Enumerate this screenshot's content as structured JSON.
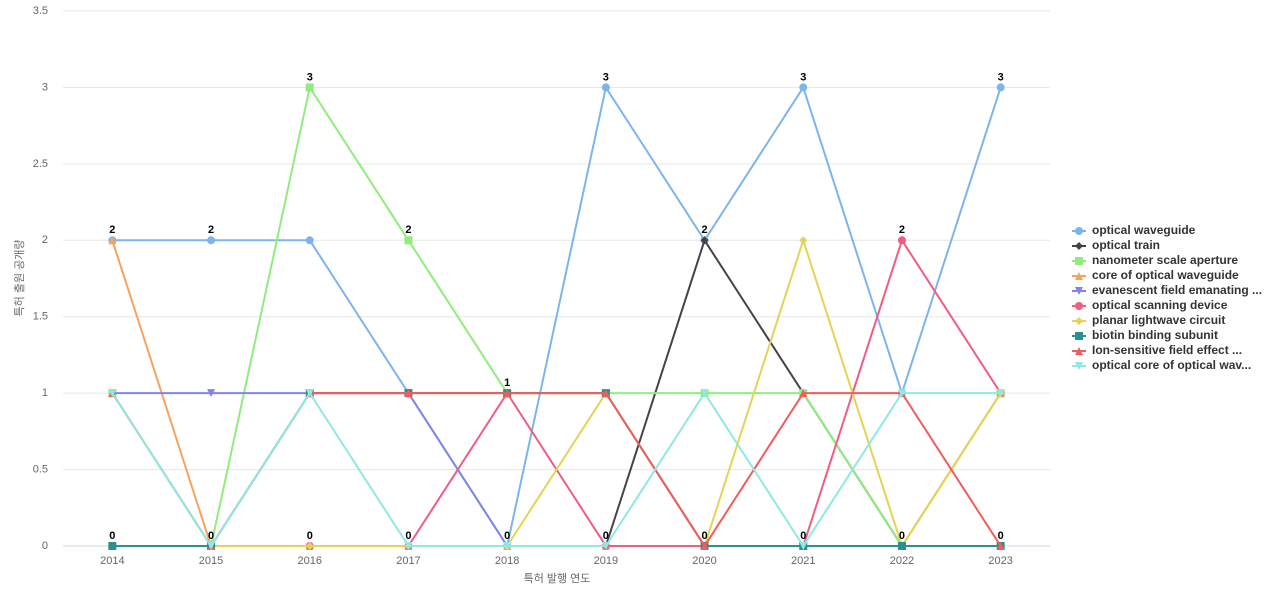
{
  "chart_data": {
    "type": "line",
    "x_label": "특허 발행 연도",
    "y_label": "특허 출원 공개량",
    "categories": [
      "2014",
      "2015",
      "2016",
      "2017",
      "2018",
      "2019",
      "2020",
      "2021",
      "2022",
      "2023"
    ],
    "ylim": [
      0,
      3.5
    ],
    "yticks": [
      0,
      0.5,
      1,
      1.5,
      2,
      2.5,
      3,
      3.5
    ],
    "grid": true,
    "legend": "right",
    "series": [
      {
        "name": "optical waveguide",
        "color": "#7cb5ec",
        "marker": "circle",
        "values": [
          2,
          2,
          2,
          1,
          0,
          3,
          2,
          3,
          1,
          3
        ]
      },
      {
        "name": "optical train",
        "color": "#434348",
        "marker": "diamond",
        "values": [
          0,
          0,
          0,
          0,
          0,
          0,
          2,
          1,
          0,
          0
        ]
      },
      {
        "name": "nanometer scale aperture",
        "color": "#90ed7d",
        "marker": "square",
        "values": [
          1,
          0,
          3,
          2,
          1,
          1,
          1,
          1,
          0,
          1
        ]
      },
      {
        "name": "core of optical waveguide",
        "color": "#f7a35c",
        "marker": "triangle",
        "values": [
          2,
          0,
          0,
          0,
          0,
          0,
          0,
          0,
          0,
          1
        ]
      },
      {
        "name": "evanescent field emanating ...",
        "color": "#8085e9",
        "marker": "triangle-down",
        "values": [
          1,
          1,
          1,
          1,
          0,
          0,
          0,
          0,
          0,
          0
        ]
      },
      {
        "name": "optical scanning device",
        "color": "#f15c80",
        "marker": "circle",
        "values": [
          0,
          0,
          0,
          0,
          1,
          0,
          0,
          0,
          2,
          1
        ]
      },
      {
        "name": "planar lightwave circuit",
        "color": "#e4d354",
        "marker": "diamond",
        "values": [
          0,
          0,
          0,
          0,
          0,
          1,
          0,
          2,
          0,
          1
        ]
      },
      {
        "name": "biotin binding subunit",
        "color": "#2b908f",
        "marker": "square",
        "values": [
          0,
          0,
          1,
          1,
          1,
          1,
          0,
          0,
          0,
          0
        ]
      },
      {
        "name": "Ion-sensitive field effect ...",
        "color": "#f45b5b",
        "marker": "triangle",
        "values": [
          1,
          0,
          1,
          1,
          1,
          1,
          0,
          1,
          1,
          0
        ]
      },
      {
        "name": "optical core of optical wav...",
        "color": "#91e8e1",
        "marker": "triangle-down",
        "values": [
          1,
          0,
          1,
          0,
          0,
          0,
          1,
          0,
          1,
          1
        ]
      }
    ]
  }
}
